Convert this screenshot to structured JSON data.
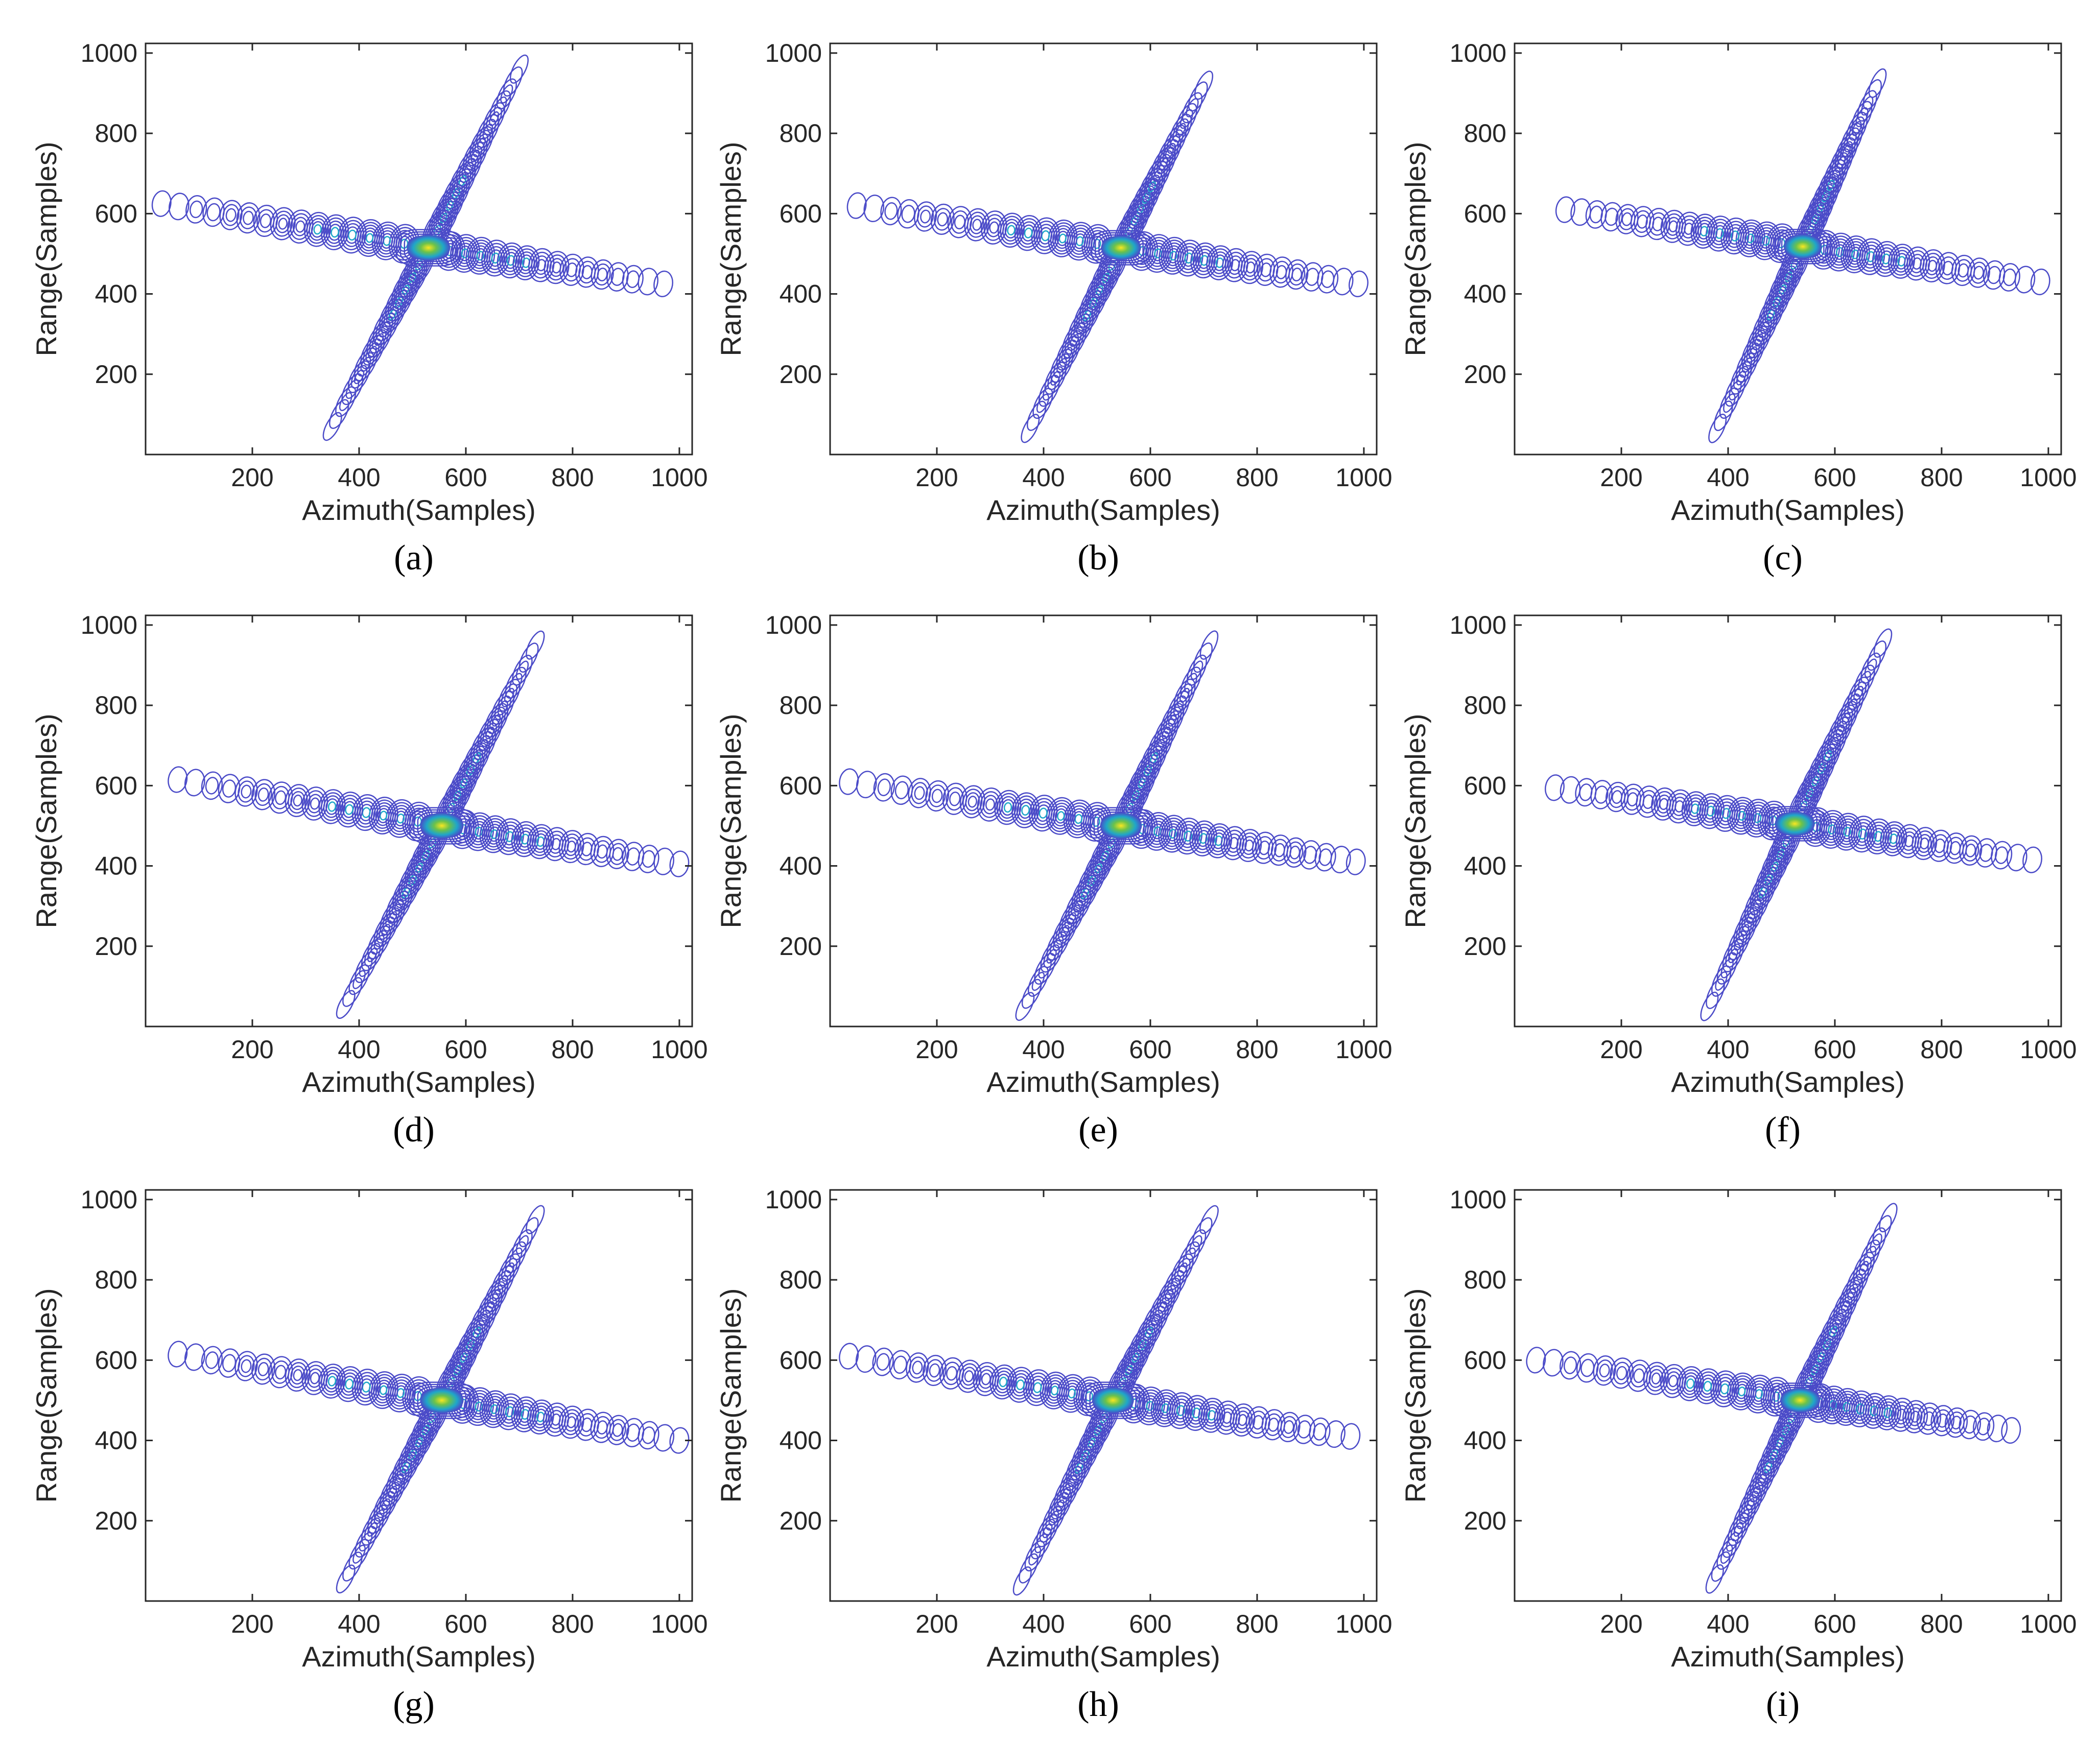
{
  "figure": {
    "colors": {
      "contour_outer": "#4b4bc8",
      "contour_mid": "#1fa6c9",
      "contour_inner": "#6cc24a",
      "peak": "#f9e721",
      "axes": "#262626"
    }
  },
  "chart_data": [
    {
      "label": "(a)",
      "type": "contour",
      "xlabel": "Azimuth(Samples)",
      "ylabel": "Range(Samples)",
      "xlim": [
        0,
        1024
      ],
      "ylim": [
        0,
        1024
      ],
      "xticks": [
        200,
        400,
        600,
        800,
        1000
      ],
      "yticks": [
        200,
        400,
        600,
        800,
        1000
      ],
      "peak": [
        530,
        515
      ],
      "mainlobe_size": [
        120,
        90
      ],
      "arm1": {
        "start": [
          30,
          625
        ],
        "end": [
          970,
          425
        ]
      },
      "arm2": {
        "start": [
          350,
          70
        ],
        "end": [
          700,
          960
        ]
      }
    },
    {
      "label": "(b)",
      "type": "contour",
      "xlabel": "Azimuth(Samples)",
      "ylabel": "Range(Samples)",
      "xlim": [
        0,
        1024
      ],
      "ylim": [
        0,
        1024
      ],
      "xticks": [
        200,
        400,
        600,
        800,
        1000
      ],
      "yticks": [
        200,
        400,
        600,
        800,
        1000
      ],
      "peak": [
        545,
        515
      ],
      "mainlobe_size": [
        110,
        85
      ],
      "arm1": {
        "start": [
          50,
          620
        ],
        "end": [
          990,
          425
        ]
      },
      "arm2": {
        "start": [
          375,
          65
        ],
        "end": [
          700,
          920
        ]
      }
    },
    {
      "label": "(c)",
      "type": "contour",
      "xlabel": "Azimuth(Samples)",
      "ylabel": "Range(Samples)",
      "xlim": [
        0,
        1024
      ],
      "ylim": [
        0,
        1024
      ],
      "xticks": [
        200,
        400,
        600,
        800,
        1000
      ],
      "yticks": [
        200,
        400,
        600,
        800,
        1000
      ],
      "peak": [
        540,
        518
      ],
      "mainlobe_size": [
        105,
        85
      ],
      "arm1": {
        "start": [
          95,
          610
        ],
        "end": [
          985,
          430
        ]
      },
      "arm2": {
        "start": [
          380,
          65
        ],
        "end": [
          680,
          925
        ]
      }
    },
    {
      "label": "(d)",
      "type": "contour",
      "xlabel": "Azimuth(Samples)",
      "ylabel": "Range(Samples)",
      "xlim": [
        0,
        1024
      ],
      "ylim": [
        0,
        1024
      ],
      "xticks": [
        200,
        400,
        600,
        800,
        1000
      ],
      "yticks": [
        200,
        400,
        600,
        800,
        1000
      ],
      "peak": [
        555,
        500
      ],
      "mainlobe_size": [
        120,
        90
      ],
      "arm1": {
        "start": [
          60,
          615
        ],
        "end": [
          1000,
          405
        ]
      },
      "arm2": {
        "start": [
          375,
          55
        ],
        "end": [
          730,
          950
        ]
      }
    },
    {
      "label": "(e)",
      "type": "contour",
      "xlabel": "Azimuth(Samples)",
      "ylabel": "Range(Samples)",
      "xlim": [
        0,
        1024
      ],
      "ylim": [
        0,
        1024
      ],
      "xticks": [
        200,
        400,
        600,
        800,
        1000
      ],
      "yticks": [
        200,
        400,
        600,
        800,
        1000
      ],
      "peak": [
        545,
        500
      ],
      "mainlobe_size": [
        115,
        90
      ],
      "arm1": {
        "start": [
          35,
          610
        ],
        "end": [
          985,
          410
        ]
      },
      "arm2": {
        "start": [
          365,
          50
        ],
        "end": [
          710,
          950
        ]
      }
    },
    {
      "label": "(f)",
      "type": "contour",
      "xlabel": "Azimuth(Samples)",
      "ylabel": "Range(Samples)",
      "xlim": [
        0,
        1024
      ],
      "ylim": [
        0,
        1024
      ],
      "xticks": [
        200,
        400,
        600,
        800,
        1000
      ],
      "yticks": [
        200,
        400,
        600,
        800,
        1000
      ],
      "peak": [
        525,
        505
      ],
      "mainlobe_size": [
        110,
        85
      ],
      "arm1": {
        "start": [
          75,
          595
        ],
        "end": [
          970,
          415
        ]
      },
      "arm2": {
        "start": [
          365,
          50
        ],
        "end": [
          690,
          955
        ]
      }
    },
    {
      "label": "(g)",
      "type": "contour",
      "xlabel": "Azimuth(Samples)",
      "ylabel": "Range(Samples)",
      "xlim": [
        0,
        1024
      ],
      "ylim": [
        0,
        1024
      ],
      "xticks": [
        200,
        400,
        600,
        800,
        1000
      ],
      "yticks": [
        200,
        400,
        600,
        800,
        1000
      ],
      "peak": [
        555,
        500
      ],
      "mainlobe_size": [
        120,
        90
      ],
      "arm1": {
        "start": [
          60,
          615
        ],
        "end": [
          1000,
          400
        ]
      },
      "arm2": {
        "start": [
          375,
          55
        ],
        "end": [
          730,
          950
        ]
      }
    },
    {
      "label": "(h)",
      "type": "contour",
      "xlabel": "Azimuth(Samples)",
      "ylabel": "Range(Samples)",
      "xlim": [
        0,
        1024
      ],
      "ylim": [
        0,
        1024
      ],
      "xticks": [
        200,
        400,
        600,
        800,
        1000
      ],
      "yticks": [
        200,
        400,
        600,
        800,
        1000
      ],
      "peak": [
        530,
        500
      ],
      "mainlobe_size": [
        115,
        90
      ],
      "arm1": {
        "start": [
          35,
          610
        ],
        "end": [
          975,
          410
        ]
      },
      "arm2": {
        "start": [
          360,
          50
        ],
        "end": [
          710,
          950
        ]
      }
    },
    {
      "label": "(i)",
      "type": "contour",
      "xlabel": "Azimuth(Samples)",
      "ylabel": "Range(Samples)",
      "xlim": [
        0,
        1024
      ],
      "ylim": [
        0,
        1024
      ],
      "xticks": [
        200,
        400,
        600,
        800,
        1000
      ],
      "yticks": [
        200,
        400,
        600,
        800,
        1000
      ],
      "peak": [
        535,
        500
      ],
      "mainlobe_size": [
        110,
        85
      ],
      "arm1": {
        "start": [
          40,
          600
        ],
        "end": [
          930,
          425
        ]
      },
      "arm2": {
        "start": [
          375,
          55
        ],
        "end": [
          700,
          955
        ]
      }
    }
  ]
}
